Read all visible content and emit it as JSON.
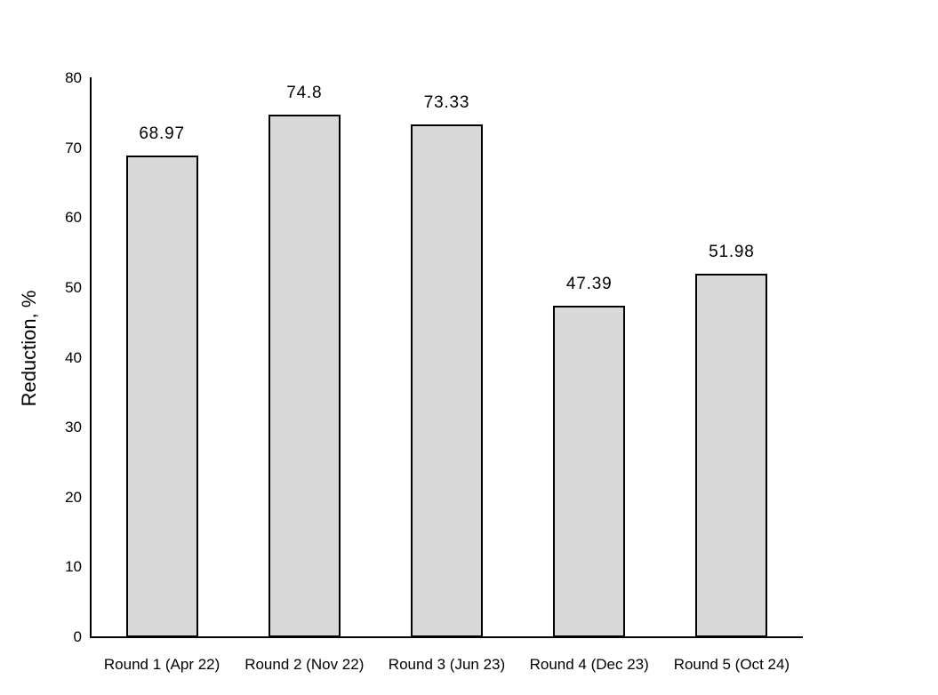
{
  "chart_data": {
    "type": "bar",
    "categories": [
      "Round 1 (Apr 22)",
      "Round 2 (Nov 22)",
      "Round 3 (Jun 23)",
      "Round 4 (Dec 23)",
      "Round 5 (Oct 24)"
    ],
    "values": [
      68.97,
      74.8,
      73.33,
      47.39,
      51.98
    ],
    "value_labels": [
      "68.97",
      "74.8",
      "73.33",
      "47.39",
      "51.98"
    ],
    "ylabel": "Reduction, %",
    "ylim": [
      0,
      80
    ],
    "yticks": [
      0,
      10,
      20,
      30,
      40,
      50,
      60,
      70,
      80
    ],
    "grid": "off",
    "legend": "none",
    "bar_fill": "#d9d9d9",
    "bar_border": "#000000",
    "text_color": "#000000",
    "background": "#ffffff"
  }
}
